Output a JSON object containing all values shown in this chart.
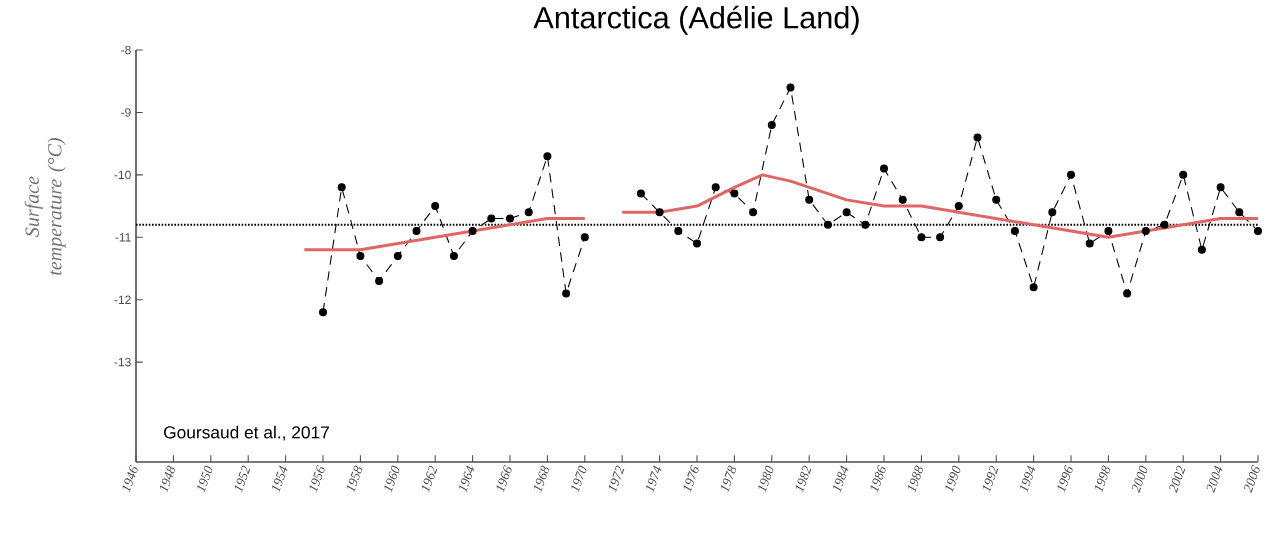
{
  "chart_data": {
    "type": "line",
    "title": "Antarctica (Adélie Land)",
    "ylabel": "Surface temperature (°C)",
    "xlim": [
      1946,
      2006
    ],
    "xticks": [
      1946,
      1948,
      1950,
      1952,
      1954,
      1956,
      1958,
      1960,
      1962,
      1964,
      1966,
      1968,
      1970,
      1972,
      1974,
      1976,
      1978,
      1980,
      1982,
      1984,
      1986,
      1988,
      1990,
      1992,
      1994,
      1996,
      1998,
      2000,
      2002,
      2004,
      2006
    ],
    "ylim": [
      -14.6,
      -8
    ],
    "yticks": [
      -13,
      -12,
      -11,
      -10,
      -9,
      -8
    ],
    "annotations": [
      "Goursaud et al., 2017"
    ],
    "ref_lines": [
      {
        "axis": "y",
        "value": -10.8,
        "color": "#000000",
        "line_style": "dotted"
      }
    ],
    "series": [
      {
        "color": "#000000",
        "marker": "circle",
        "line_style": "dashed",
        "x": [
          1956,
          1957,
          1958,
          1959,
          1960,
          1961,
          1962,
          1963,
          1964,
          1965,
          1966,
          1967,
          1968,
          1969,
          1970,
          1971,
          1972,
          1973,
          1974,
          1975,
          1976,
          1977,
          1978,
          1979,
          1980,
          1981,
          1982,
          1983,
          1984,
          1985,
          1986,
          1987,
          1988,
          1989,
          1990,
          1991,
          1992,
          1993,
          1994,
          1995,
          1996,
          1997,
          1998,
          1999,
          2000,
          2001,
          2002,
          2003,
          2004,
          2005,
          2006
        ],
        "values": [
          -12.2,
          -10.2,
          -11.3,
          -11.7,
          -11.3,
          -10.9,
          -10.5,
          -11.3,
          -10.9,
          -10.7,
          -10.7,
          -10.6,
          -9.7,
          -11.9,
          -11.0,
          null,
          null,
          -10.3,
          -10.6,
          -10.9,
          -11.1,
          -10.2,
          -10.3,
          -10.6,
          -9.2,
          -8.6,
          -10.4,
          -10.8,
          -10.6,
          -10.8,
          -9.9,
          -10.4,
          -11.0,
          -11.0,
          -10.5,
          -9.4,
          -10.4,
          -10.9,
          -11.8,
          -10.6,
          -10.0,
          -11.1,
          -10.9,
          -11.9,
          -10.9,
          -10.8,
          -10.0,
          -11.2,
          -10.2,
          -10.6,
          -10.9
        ]
      },
      {
        "color": "#e06666",
        "marker": "none",
        "line_style": "solid",
        "x": [
          1955,
          1956,
          1958,
          1960,
          1962,
          1964,
          1966,
          1968,
          1970,
          1971,
          1972,
          1974,
          1976,
          1978,
          1979.5,
          1981,
          1982,
          1984,
          1986,
          1988,
          1990,
          1992,
          1994,
          1996,
          1998,
          2000,
          2002,
          2004,
          2006
        ],
        "values": [
          -11.2,
          -11.2,
          -11.2,
          -11.1,
          -11.0,
          -10.9,
          -10.8,
          -10.7,
          -10.7,
          null,
          -10.6,
          -10.6,
          -10.5,
          -10.2,
          -10.0,
          -10.1,
          -10.2,
          -10.4,
          -10.5,
          -10.5,
          -10.6,
          -10.7,
          -10.8,
          -10.9,
          -11.0,
          -10.9,
          -10.8,
          -10.7,
          -10.7
        ]
      }
    ]
  }
}
